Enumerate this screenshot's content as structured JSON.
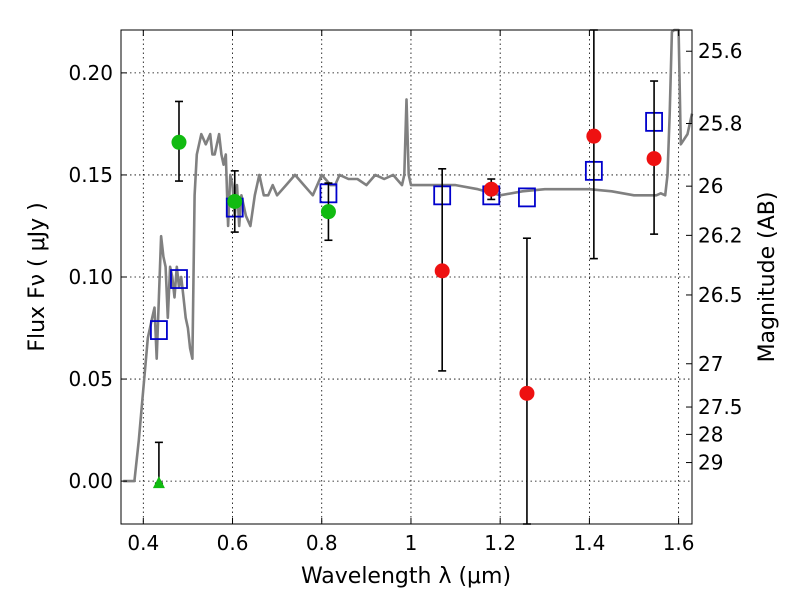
{
  "chart_data": {
    "type": "scatter",
    "xlabel": "Wavelength  λ (μm)",
    "ylabel": "Flux  Fν ( μJy )",
    "y2label": "Magnitude (AB)",
    "xlim": [
      0.35,
      1.63
    ],
    "ylim": [
      -0.021,
      0.221
    ],
    "grid": true,
    "x_ticks": [
      {
        "v": 0.4,
        "label": "0.4"
      },
      {
        "v": 0.6,
        "label": "0.6"
      },
      {
        "v": 0.8,
        "label": "0.8"
      },
      {
        "v": 1.0,
        "label": "1"
      },
      {
        "v": 1.2,
        "label": "1.2"
      },
      {
        "v": 1.4,
        "label": "1.4"
      },
      {
        "v": 1.6,
        "label": "1.6"
      }
    ],
    "y_ticks": [
      {
        "v": 0.0,
        "label": "0.00"
      },
      {
        "v": 0.05,
        "label": "0.05"
      },
      {
        "v": 0.1,
        "label": "0.10"
      },
      {
        "v": 0.15,
        "label": "0.15"
      },
      {
        "v": 0.2,
        "label": "0.20"
      }
    ],
    "mag_ticks": [
      {
        "flux": 0.2106,
        "label": "25.6"
      },
      {
        "flux": 0.1752,
        "label": "25.8"
      },
      {
        "flux": 0.1445,
        "label": "26"
      },
      {
        "flux": 0.1204,
        "label": "26.2"
      },
      {
        "flux": 0.0912,
        "label": "26.5"
      },
      {
        "flux": 0.0575,
        "label": "27"
      },
      {
        "flux": 0.0363,
        "label": "27.5"
      },
      {
        "flux": 0.0229,
        "label": "28"
      },
      {
        "flux": 0.0091,
        "label": "29"
      }
    ],
    "series": [
      {
        "name": "model SED",
        "kind": "line",
        "color": "#808080",
        "x": [
          0.355,
          0.38,
          0.39,
          0.4,
          0.41,
          0.42,
          0.425,
          0.43,
          0.435,
          0.44,
          0.445,
          0.45,
          0.455,
          0.46,
          0.465,
          0.47,
          0.475,
          0.48,
          0.485,
          0.49,
          0.495,
          0.5,
          0.505,
          0.51,
          0.515,
          0.52,
          0.53,
          0.54,
          0.55,
          0.555,
          0.56,
          0.565,
          0.57,
          0.575,
          0.58,
          0.585,
          0.59,
          0.595,
          0.6,
          0.605,
          0.61,
          0.615,
          0.62,
          0.63,
          0.64,
          0.65,
          0.66,
          0.67,
          0.68,
          0.69,
          0.7,
          0.72,
          0.74,
          0.76,
          0.78,
          0.8,
          0.82,
          0.83,
          0.84,
          0.86,
          0.88,
          0.9,
          0.92,
          0.94,
          0.96,
          0.98,
          0.985,
          0.99,
          0.995,
          1.0,
          1.02,
          1.05,
          1.1,
          1.15,
          1.2,
          1.25,
          1.3,
          1.35,
          1.4,
          1.45,
          1.5,
          1.52,
          1.55,
          1.56,
          1.57,
          1.575,
          1.58,
          1.585,
          1.59,
          1.6,
          1.605,
          1.62,
          1.63
        ],
        "y": [
          0.0,
          0.0,
          0.02,
          0.045,
          0.07,
          0.08,
          0.085,
          0.06,
          0.09,
          0.12,
          0.11,
          0.105,
          0.08,
          0.105,
          0.1,
          0.09,
          0.105,
          0.095,
          0.1,
          0.09,
          0.08,
          0.075,
          0.065,
          0.06,
          0.14,
          0.16,
          0.17,
          0.165,
          0.17,
          0.16,
          0.16,
          0.165,
          0.17,
          0.16,
          0.155,
          0.16,
          0.125,
          0.15,
          0.145,
          0.13,
          0.145,
          0.125,
          0.14,
          0.13,
          0.125,
          0.14,
          0.15,
          0.14,
          0.14,
          0.145,
          0.14,
          0.145,
          0.15,
          0.145,
          0.14,
          0.15,
          0.145,
          0.145,
          0.15,
          0.148,
          0.148,
          0.145,
          0.15,
          0.148,
          0.15,
          0.145,
          0.15,
          0.187,
          0.15,
          0.145,
          0.145,
          0.145,
          0.145,
          0.143,
          0.14,
          0.142,
          0.143,
          0.143,
          0.143,
          0.142,
          0.14,
          0.14,
          0.14,
          0.141,
          0.14,
          0.15,
          0.18,
          0.22,
          0.23,
          0.23,
          0.165,
          0.17,
          0.18
        ]
      },
      {
        "name": "model band fluxes",
        "kind": "open-square",
        "color": "#0000cc",
        "points": [
          {
            "x": 0.435,
            "y": 0.074
          },
          {
            "x": 0.48,
            "y": 0.099
          },
          {
            "x": 0.605,
            "y": 0.134
          },
          {
            "x": 0.815,
            "y": 0.141
          },
          {
            "x": 1.07,
            "y": 0.14
          },
          {
            "x": 1.18,
            "y": 0.14
          },
          {
            "x": 1.26,
            "y": 0.139
          },
          {
            "x": 1.41,
            "y": 0.152
          },
          {
            "x": 1.545,
            "y": 0.176
          }
        ]
      },
      {
        "name": "optical photometry",
        "kind": "filled-circle",
        "color": "#11bb11",
        "points": [
          {
            "x": 0.48,
            "y": 0.166,
            "err_lo": 0.147,
            "err_hi": 0.186
          },
          {
            "x": 0.605,
            "y": 0.137,
            "err_lo": 0.122,
            "err_hi": 0.152
          },
          {
            "x": 0.815,
            "y": 0.132,
            "err_lo": 0.118,
            "err_hi": 0.146
          }
        ]
      },
      {
        "name": "upper limit",
        "kind": "triangle",
        "color": "#11bb11",
        "points": [
          {
            "x": 0.435,
            "y": -0.001,
            "err_lo": -0.001,
            "err_hi": 0.019
          }
        ]
      },
      {
        "name": "near-IR photometry",
        "kind": "filled-circle",
        "color": "#ee1111",
        "points": [
          {
            "x": 1.07,
            "y": 0.103,
            "err_lo": 0.054,
            "err_hi": 0.153
          },
          {
            "x": 1.18,
            "y": 0.143,
            "err_lo": 0.138,
            "err_hi": 0.148
          },
          {
            "x": 1.26,
            "y": 0.043,
            "err_lo": -0.021,
            "err_hi": 0.119
          },
          {
            "x": 1.41,
            "y": 0.169,
            "err_lo": 0.109,
            "err_hi": 0.221
          },
          {
            "x": 1.545,
            "y": 0.158,
            "err_lo": 0.121,
            "err_hi": 0.196
          }
        ]
      }
    ]
  }
}
